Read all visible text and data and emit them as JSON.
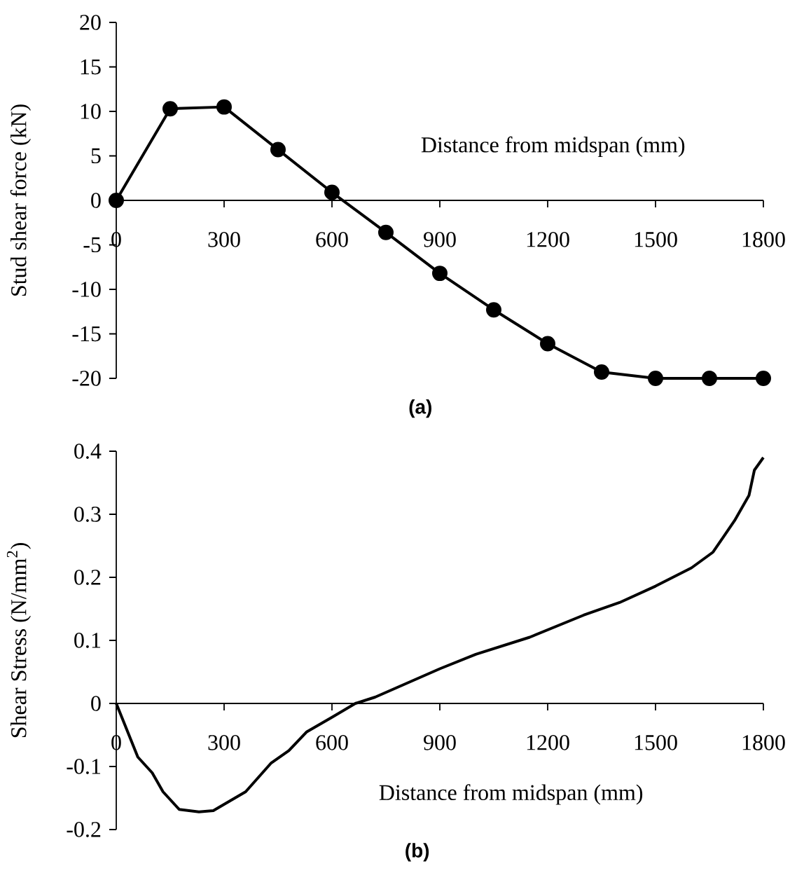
{
  "chart_data": [
    {
      "type": "line",
      "xlabel": "Distance from midspan (mm)",
      "ylabel": "Stud shear force (kN)",
      "annotations": [
        "(a)"
      ],
      "marker": "circle",
      "xlim": [
        0,
        1800
      ],
      "ylim": [
        -20,
        20
      ],
      "xticks": [
        0,
        300,
        600,
        900,
        1200,
        1500,
        1800
      ],
      "yticks": [
        -20,
        -15,
        -10,
        -5,
        0,
        5,
        10,
        15,
        20
      ],
      "series": [
        {
          "color": "#000000",
          "x": [
            0,
            150,
            300,
            450,
            600,
            750,
            900,
            1050,
            1200,
            1350,
            1500,
            1650,
            1800
          ],
          "values": [
            0,
            10.3,
            10.5,
            5.7,
            0.9,
            -3.6,
            -8.2,
            -12.3,
            -16.1,
            -19.3,
            -20,
            -20,
            -20
          ]
        }
      ]
    },
    {
      "type": "line",
      "xlabel": "Distance from midspan (mm)",
      "ylabel": "Shear Stress (N/mm$^{2}$)",
      "annotations": [
        "(b)"
      ],
      "xlim": [
        0,
        1800
      ],
      "ylim": [
        -0.2,
        0.4
      ],
      "xticks": [
        0,
        300,
        600,
        900,
        1200,
        1500,
        1800
      ],
      "yticks": [
        -0.2,
        -0.1,
        0,
        0.1,
        0.2,
        0.3,
        0.4
      ],
      "series": [
        {
          "color": "#000000",
          "x": [
            0,
            60,
            100,
            130,
            175,
            230,
            270,
            300,
            360,
            430,
            480,
            530,
            600,
            665,
            720,
            780,
            900,
            1000,
            1150,
            1300,
            1400,
            1500,
            1600,
            1660,
            1720,
            1760,
            1775,
            1800
          ],
          "values": [
            0,
            -0.085,
            -0.11,
            -0.14,
            -0.168,
            -0.172,
            -0.17,
            -0.16,
            -0.14,
            -0.095,
            -0.075,
            -0.045,
            -0.022,
            0,
            0.01,
            0.025,
            0.055,
            0.078,
            0.105,
            0.14,
            0.16,
            0.186,
            0.215,
            0.24,
            0.29,
            0.33,
            0.37,
            0.39
          ]
        }
      ]
    }
  ]
}
